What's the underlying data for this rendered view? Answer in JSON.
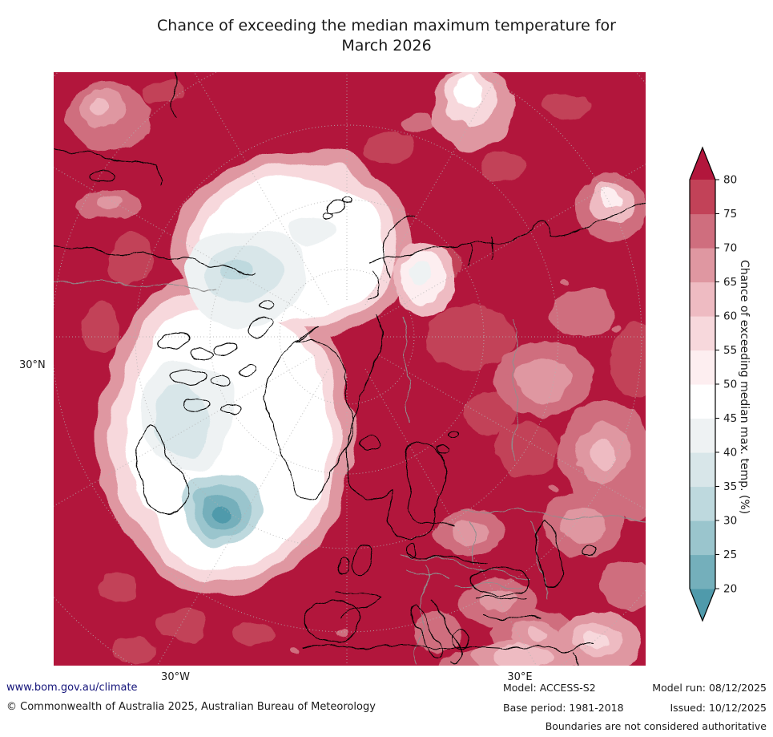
{
  "title": {
    "line1": "Chance of exceeding the median maximum temperature for",
    "line2": "March 2026"
  },
  "map": {
    "lat_label": "30°N",
    "lon_left": "30°W",
    "lon_right": "30°E"
  },
  "colorbar": {
    "label": "Chance of exceeding median max. temp. (%)",
    "tick_labels": [
      "20",
      "25",
      "30",
      "35",
      "40",
      "45",
      "50",
      "55",
      "60",
      "65",
      "70",
      "75",
      "80"
    ],
    "colors_bottom_to_top": [
      "#4f9aab",
      "#74afbb",
      "#9ac5cd",
      "#bed9de",
      "#d8e6e9",
      "#eef2f3",
      "#ffffff",
      "#fdeef0",
      "#f7d8dc",
      "#eebbc2",
      "#df97a1",
      "#cf6e7e",
      "#c24258",
      "#b2163c"
    ],
    "extend": "both"
  },
  "footer": {
    "website": "www.bom.gov.au/climate",
    "copyright": "© Commonwealth of Australia 2025, Australian Bureau of Meteorology",
    "model": "Model: ACCESS-S2",
    "model_run": "Model run: 08/12/2025",
    "base_period": "Base period: 1981-2018",
    "issued": "Issued: 10/12/2025",
    "disclaimer": "Boundaries are not considered authoritative"
  }
}
